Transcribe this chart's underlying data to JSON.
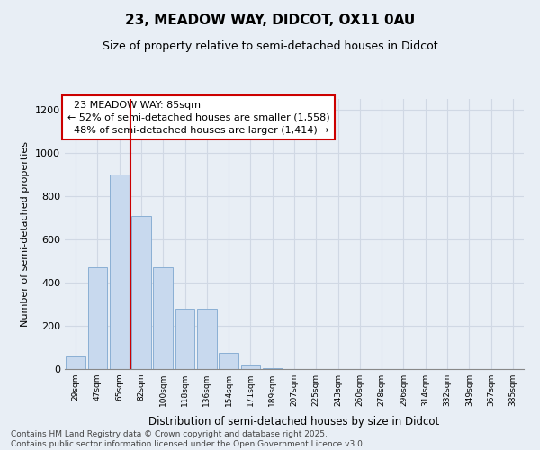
{
  "title": "23, MEADOW WAY, DIDCOT, OX11 0AU",
  "subtitle": "Size of property relative to semi-detached houses in Didcot",
  "xlabel": "Distribution of semi-detached houses by size in Didcot",
  "ylabel": "Number of semi-detached properties",
  "bar_color": "#c8d9ee",
  "bar_edge_color": "#8aafd4",
  "background_color": "#e8eef5",
  "grid_color": "#d0d8e4",
  "categories": [
    "29sqm",
    "47sqm",
    "65sqm",
    "82sqm",
    "100sqm",
    "118sqm",
    "136sqm",
    "154sqm",
    "171sqm",
    "189sqm",
    "207sqm",
    "225sqm",
    "243sqm",
    "260sqm",
    "278sqm",
    "296sqm",
    "314sqm",
    "332sqm",
    "349sqm",
    "367sqm",
    "385sqm"
  ],
  "values": [
    60,
    470,
    900,
    710,
    470,
    280,
    280,
    75,
    15,
    5,
    0,
    0,
    0,
    0,
    0,
    0,
    0,
    0,
    0,
    0,
    0
  ],
  "ylim": [
    0,
    1250
  ],
  "yticks": [
    0,
    200,
    400,
    600,
    800,
    1000,
    1200
  ],
  "property_label": "23 MEADOW WAY: 85sqm",
  "pct_smaller": 52,
  "pct_larger": 48,
  "count_smaller": "1,558",
  "count_larger": "1,414",
  "vline_x": 2.5,
  "vline_color": "#cc0000",
  "annotation_box_color": "#ffffff",
  "annotation_box_edge_color": "#cc0000",
  "footer_line1": "Contains HM Land Registry data © Crown copyright and database right 2025.",
  "footer_line2": "Contains public sector information licensed under the Open Government Licence v3.0."
}
